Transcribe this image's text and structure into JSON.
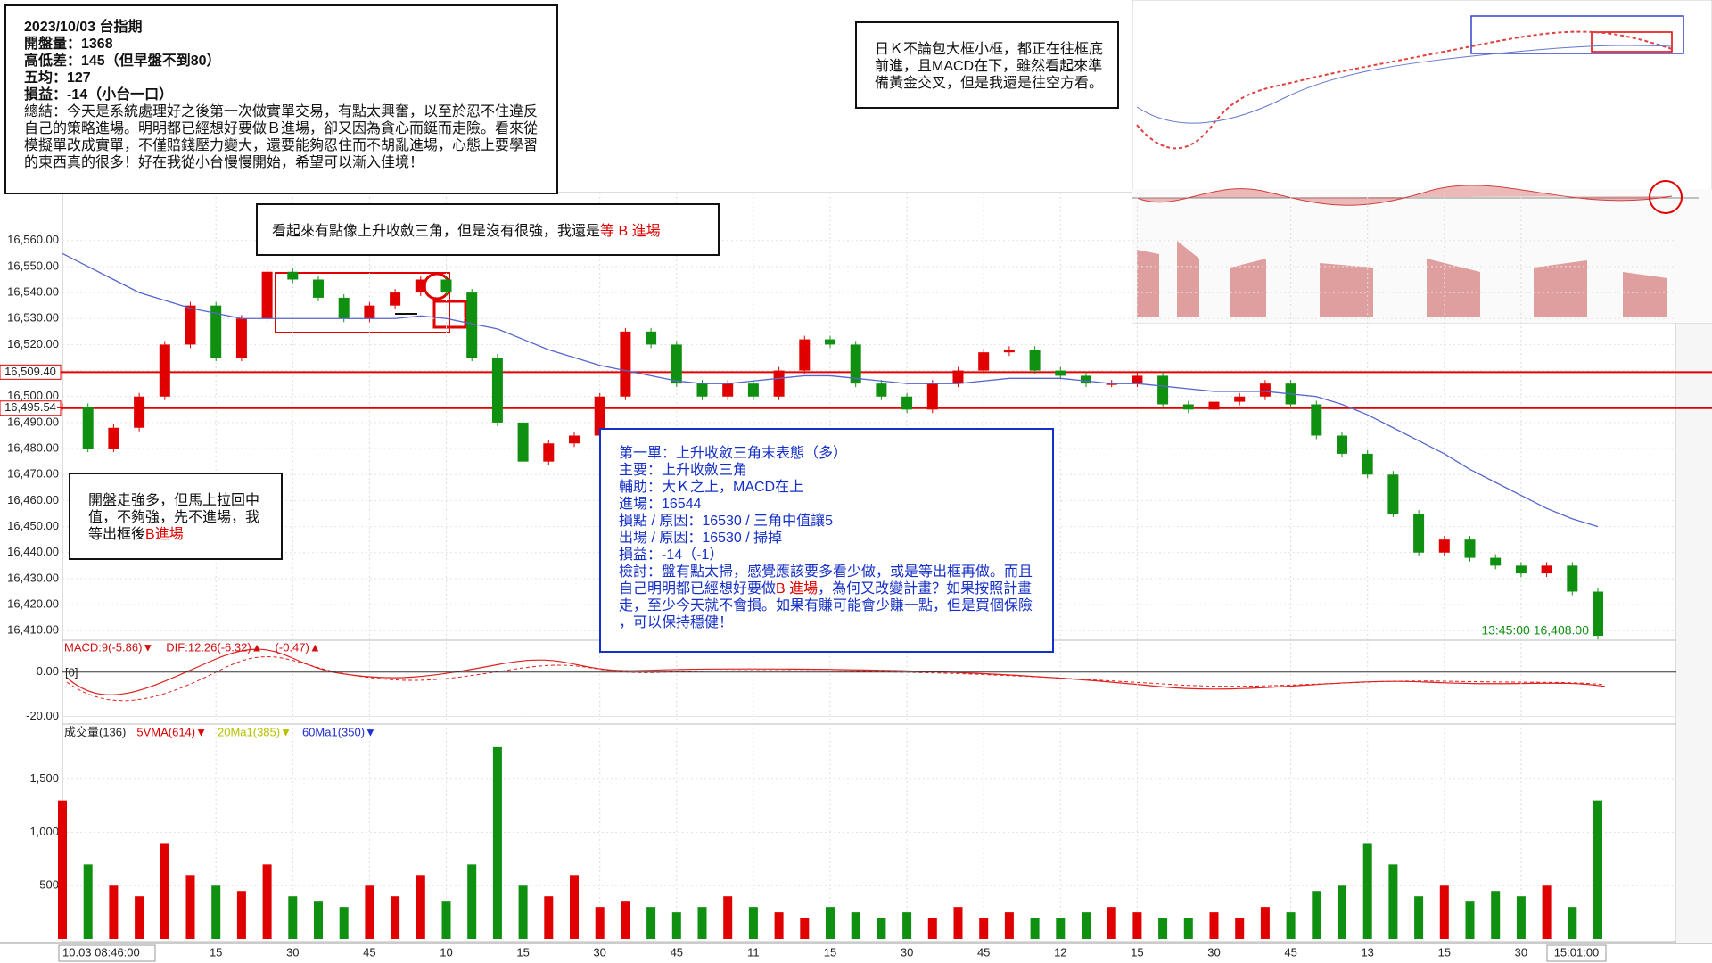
{
  "notes": {
    "summary": {
      "lines": [
        "2023/10/03 台指期",
        "開盤量：1368",
        "高低差：145（但早盤不到80）",
        "五均：127",
        "損益：-14（小台一口）",
        "總結：今天是系統處理好之後第一次做實單交易，有點太興奮，以至於忍不住違反",
        "自己的策略進場。明明都已經想好要做Ｂ進場，卻又因為貪心而鋌而走險。看來從",
        "模擬單改成實單，不僅賠錢壓力變大，還要能夠忍住而不胡亂進場，心態上要學習",
        "的東西真的很多！好在我從小台慢慢開始，希望可以漸入佳境！"
      ]
    },
    "daily": {
      "lines": [
        "日Ｋ不論包大框小框，都正在往框底",
        "前進，且MACD在下，雖然看起來準",
        "備黃金交叉，但是我還是往空方看。"
      ]
    },
    "triangle": {
      "lines": [
        [
          "看起來有點像上升收斂三角，但是沒有很強，我還是",
          {
            "text": "等 B 進場",
            "color": "#e00000"
          }
        ]
      ]
    },
    "open": {
      "lines": [
        "開盤走強多，但馬上拉回中",
        "值，不夠強，先不進場，我",
        [
          "等出框後",
          {
            "text": "B進場",
            "color": "#e00000"
          }
        ]
      ]
    },
    "trade": {
      "lines": [
        "第一單：上升收斂三角末表態（多）",
        "主要：上升收斂三角",
        "輔助：大Ｋ之上，MACD在上",
        "進場：16544",
        "損點 / 原因：16530 / 三角中值讓5",
        "出場 / 原因：16530 / 掃掉",
        "損益：-14（-1）",
        "檢討：盤有點太掃，感覺應該要多看少做，或是等出框再做。而且",
        [
          "自己明明都已經想好要做",
          {
            "text": "B 進場",
            "color": "#e00000"
          },
          "，為何又改變計畫？如果按照計畫"
        ],
        "走，至少今天就不會損。如果有賺可能會少賺一點，但是買個保險",
        "，可以保持穩健！"
      ]
    }
  },
  "chart_data": {
    "type": "candlestick",
    "categories": [
      "10.03 08:46:00",
      null,
      null,
      null,
      null,
      null,
      "15",
      null,
      null,
      "30",
      null,
      null,
      "45",
      null,
      null,
      "10",
      null,
      null,
      "15",
      null,
      null,
      "30",
      null,
      null,
      "45",
      null,
      null,
      "11",
      null,
      null,
      "15",
      null,
      null,
      "30",
      null,
      null,
      "45",
      null,
      null,
      "12",
      null,
      null,
      "15",
      null,
      null,
      "30",
      null,
      null,
      "45",
      null,
      null,
      "13",
      null,
      null,
      "15",
      null,
      null,
      "30",
      null,
      null,
      null
    ],
    "cursor_label": "15:01:00",
    "series": [
      {
        "name": "price",
        "up_color": "#e00000",
        "down_color": "#109010",
        "values": [
          16496,
          16480,
          16488,
          16500,
          16520,
          16535,
          16515,
          16530,
          16548,
          16545,
          16538,
          16530,
          16535,
          16540,
          16545,
          16540,
          16515,
          16490,
          16475,
          16482,
          16485,
          16500,
          16525,
          16520,
          16505,
          16500,
          16505,
          16500,
          16510,
          16522,
          16520,
          16505,
          16500,
          16495,
          16505,
          16510,
          16517,
          16518,
          16510,
          16508,
          16505,
          16505,
          16508,
          16497,
          16495,
          16498,
          16500,
          16505,
          16497,
          16485,
          16478,
          16470,
          16455,
          16440,
          16445,
          16438,
          16435,
          16432,
          16435,
          16425,
          16408
        ]
      },
      {
        "name": "ma",
        "color": "#5566cc",
        "values": [
          16555,
          16550,
          16545,
          16540,
          16537,
          16534,
          16532,
          16530,
          16530,
          16530,
          16530,
          16530,
          16530,
          16530,
          16531,
          16530,
          16528,
          16526,
          16522,
          16518,
          16515,
          16512,
          16510,
          16508,
          16506,
          16505,
          16505,
          16506,
          16507,
          16508,
          16508,
          16507,
          16506,
          16505,
          16505,
          16505,
          16506,
          16507,
          16507,
          16507,
          16506,
          16505,
          16505,
          16504,
          16503,
          16502,
          16502,
          16502,
          16501,
          16500,
          16497,
          16493,
          16488,
          16483,
          16478,
          16472,
          16467,
          16462,
          16457,
          16453,
          16450
        ]
      }
    ],
    "ylim": [
      16407,
      16575
    ],
    "yticks": [
      {
        "value": 16410,
        "label": "16,410.00"
      },
      {
        "value": 16420,
        "label": "16,420.00"
      },
      {
        "value": 16430,
        "label": "16,430.00"
      },
      {
        "value": 16440,
        "label": "16,440.00"
      },
      {
        "value": 16450,
        "label": "16,450.00"
      },
      {
        "value": 16460,
        "label": "16,460.00"
      },
      {
        "value": 16470,
        "label": "16,470.00"
      },
      {
        "value": 16480,
        "label": "16,480.00"
      },
      {
        "value": 16490,
        "label": "16,490.00"
      },
      {
        "value": 16500,
        "label": "16,500.00"
      },
      {
        "value": 16510,
        "label": "16,510.00"
      },
      {
        "value": 16520,
        "label": "16,520.00"
      },
      {
        "value": 16530,
        "label": "16,530.00"
      },
      {
        "value": 16540,
        "label": "16,540.00"
      },
      {
        "value": 16550,
        "label": "16,550.00"
      },
      {
        "value": 16560,
        "label": "16,560.00"
      }
    ],
    "ref_lines": [
      {
        "value": 16509.4,
        "label": "16,509.40",
        "color": "#e00000"
      },
      {
        "value": 16495.54,
        "label": "16,495.54",
        "color": "#e00000"
      }
    ],
    "last_label": "13:45:00  16,408.00",
    "grid": true,
    "macd": {
      "headers": [
        {
          "text": "MACD:9(-5.86)▼",
          "color": "#d01010"
        },
        {
          "text": "DIF:12.26(-6.32)▲",
          "color": "#d01010"
        },
        {
          "text": "(-0.47)▲",
          "color": "#d01010"
        }
      ],
      "zero_label": "[0]",
      "ylim": [
        -23,
        14
      ],
      "yticks": [
        {
          "value": 0,
          "label": "0.00"
        },
        {
          "value": -20,
          "label": "-20.00"
        }
      ]
    },
    "volume": {
      "headers": [
        {
          "text": "成交量(136)",
          "color": "#222222"
        },
        {
          "text": "5VMA(614)▼",
          "color": "#e00000"
        },
        {
          "text": "20Ma1(385)▼",
          "color": "#b8c000"
        },
        {
          "text": "60Ma1(350)▼",
          "color": "#2030d0"
        }
      ],
      "values": [
        1300,
        700,
        500,
        400,
        900,
        600,
        500,
        450,
        700,
        400,
        350,
        300,
        500,
        400,
        600,
        350,
        700,
        1800,
        500,
        400,
        600,
        300,
        350,
        300,
        250,
        300,
        400,
        300,
        250,
        200,
        300,
        250,
        200,
        250,
        200,
        300,
        200,
        250,
        200,
        200,
        250,
        300,
        250,
        200,
        200,
        250,
        200,
        300,
        250,
        450,
        500,
        900,
        700,
        400,
        500,
        350,
        450,
        400,
        500,
        300,
        1300
      ],
      "ylim": [
        0,
        2000
      ],
      "yticks": [
        {
          "value": 500,
          "label": "500"
        },
        {
          "value": 1000,
          "label": "1,000"
        },
        {
          "value": 1500,
          "label": "1,500"
        }
      ]
    }
  }
}
